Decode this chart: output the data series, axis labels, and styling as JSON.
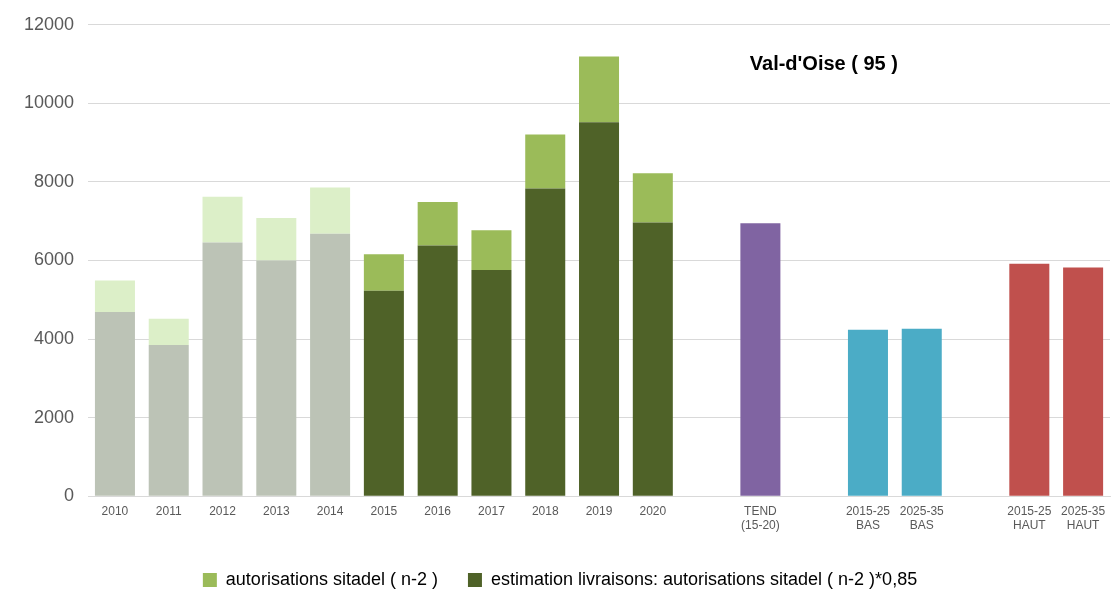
{
  "chart_data": {
    "type": "bar",
    "title": "Val-d'Oise ( 95 )",
    "stacked": true,
    "grid": "y",
    "legend": "bottom",
    "categories": [
      "2010",
      "2011",
      "2012",
      "2013",
      "2014",
      "2015",
      "2016",
      "2017",
      "2018",
      "2019",
      "2020",
      null,
      "TEND (15-20)",
      null,
      "2015-25 BAS",
      "2025-35 BAS",
      null,
      "2015-25 HAUT",
      "2025-35 HAUT"
    ],
    "ylim": [
      0,
      12000
    ],
    "yticks": [
      0,
      2000,
      4000,
      6000,
      8000,
      10000,
      12000
    ],
    "series": [
      {
        "name": "estimation livraisons: autorisations sitadel ( n-2 )*0,85",
        "color": "#4f6228",
        "colors": [
          "#bcc3b6",
          "#bcc3b6",
          "#bcc3b6",
          "#bcc3b6",
          "#bcc3b6",
          "#4f6228",
          "#4f6228",
          "#4f6228",
          "#4f6228",
          "#4f6228",
          "#4f6228",
          null,
          null,
          null,
          null,
          null,
          null,
          null,
          null
        ],
        "values": [
          4690,
          3850,
          6460,
          6000,
          6680,
          5230,
          6380,
          5760,
          7830,
          9520,
          6970,
          null,
          null,
          null,
          null,
          null,
          null,
          null,
          null
        ]
      },
      {
        "name": "autorisations sitadel ( n-2 )",
        "color": "#9bbb59",
        "colors": [
          "#dcefc8",
          "#dcefc8",
          "#dcefc8",
          "#dcefc8",
          "#dcefc8",
          "#9bbb59",
          "#9bbb59",
          "#9bbb59",
          "#9bbb59",
          "#9bbb59",
          "#9bbb59",
          null,
          null,
          null,
          null,
          null,
          null,
          null,
          null
        ],
        "values": [
          800,
          670,
          1160,
          1080,
          1180,
          930,
          1110,
          1010,
          1380,
          1670,
          1250,
          null,
          null,
          null,
          null,
          null,
          null,
          null,
          null
        ]
      },
      {
        "colors": [
          null,
          null,
          null,
          null,
          null,
          null,
          null,
          null,
          null,
          null,
          null,
          null,
          "#8064a2",
          null,
          "#4bacc6",
          "#4bacc6",
          null,
          "#c0504d",
          "#c0504d"
        ],
        "values": [
          null,
          null,
          null,
          null,
          null,
          null,
          null,
          null,
          null,
          null,
          null,
          null,
          6950,
          null,
          4240,
          4260,
          null,
          5920,
          5820
        ]
      }
    ]
  }
}
